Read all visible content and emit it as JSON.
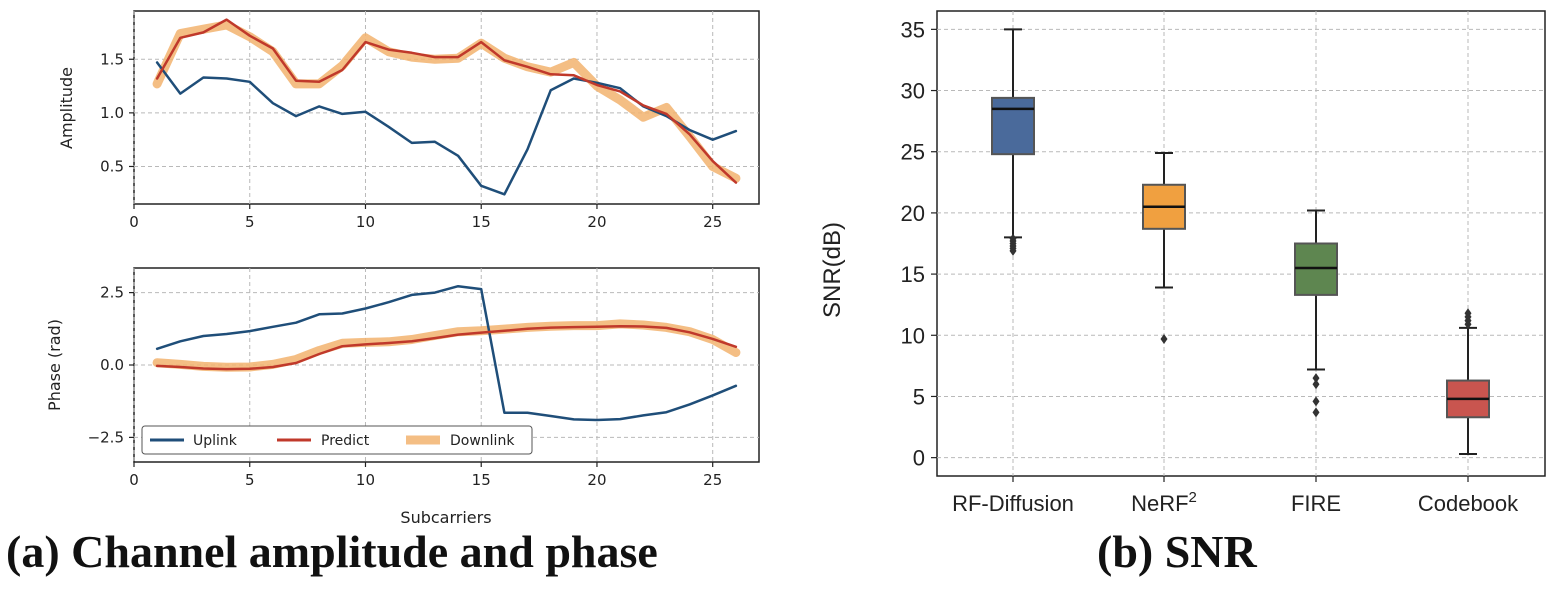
{
  "captions": {
    "a": "(a) Channel amplitude and phase",
    "b": "(b) SNR"
  },
  "colors": {
    "uplink": "#1f4e79",
    "predict": "#c0392b",
    "downlink": "#f2b36f",
    "rf_diffusion": "#4a6a9b",
    "nerf2": "#f0a040",
    "fire": "#5e8650",
    "codebook": "#c9554f"
  },
  "chart_data": [
    {
      "type": "line",
      "panel": "a-top",
      "xlabel": "",
      "ylabel": "Amplitude",
      "xlim": [
        0,
        27
      ],
      "ylim": [
        0.15,
        1.95
      ],
      "xticks": [
        "0",
        "5",
        "10",
        "15",
        "20",
        "25"
      ],
      "yticks": [
        "0.5",
        "1.0",
        "1.5"
      ],
      "grid": true,
      "x": [
        1,
        2,
        3,
        4,
        5,
        6,
        7,
        8,
        9,
        10,
        11,
        12,
        13,
        14,
        15,
        16,
        17,
        18,
        19,
        20,
        21,
        22,
        23,
        24,
        25,
        26
      ],
      "series": [
        {
          "name": "Uplink",
          "values": [
            1.47,
            1.18,
            1.33,
            1.32,
            1.29,
            1.09,
            0.97,
            1.06,
            0.99,
            1.01,
            0.87,
            0.72,
            0.73,
            0.6,
            0.32,
            0.24,
            0.66,
            1.21,
            1.32,
            1.28,
            1.23,
            1.06,
            0.97,
            0.84,
            0.75,
            0.83
          ]
        },
        {
          "name": "Predict",
          "values": [
            1.32,
            1.7,
            1.75,
            1.87,
            1.72,
            1.6,
            1.3,
            1.29,
            1.4,
            1.66,
            1.59,
            1.56,
            1.52,
            1.52,
            1.66,
            1.49,
            1.43,
            1.36,
            1.35,
            1.26,
            1.2,
            1.07,
            0.99,
            0.8,
            0.55,
            0.35
          ]
        },
        {
          "name": "Downlink",
          "values": [
            1.27,
            1.74,
            1.78,
            1.82,
            1.71,
            1.57,
            1.27,
            1.27,
            1.44,
            1.7,
            1.57,
            1.52,
            1.5,
            1.51,
            1.65,
            1.51,
            1.43,
            1.38,
            1.47,
            1.25,
            1.12,
            0.96,
            1.05,
            0.78,
            0.5,
            0.39
          ]
        }
      ]
    },
    {
      "type": "line",
      "panel": "a-bottom",
      "xlabel": "Subcarriers",
      "ylabel": "Phase (rad)",
      "xlim": [
        0,
        27
      ],
      "ylim": [
        -3.35,
        3.35
      ],
      "xticks": [
        "0",
        "5",
        "10",
        "15",
        "20",
        "25"
      ],
      "yticks": [
        "2.5",
        "0.0",
        "−2.5"
      ],
      "grid": true,
      "legend": "lower-left",
      "x": [
        1,
        2,
        3,
        4,
        5,
        6,
        7,
        8,
        9,
        10,
        11,
        12,
        13,
        14,
        15,
        16,
        17,
        18,
        19,
        20,
        21,
        22,
        23,
        24,
        25,
        26
      ],
      "series": [
        {
          "name": "Uplink",
          "values": [
            0.56,
            0.82,
            1.0,
            1.07,
            1.17,
            1.32,
            1.46,
            1.75,
            1.78,
            1.95,
            2.17,
            2.42,
            2.5,
            2.72,
            2.62,
            -1.65,
            -1.65,
            -1.76,
            -1.88,
            -1.9,
            -1.87,
            -1.74,
            -1.63,
            -1.36,
            -1.05,
            -0.72
          ]
        },
        {
          "name": "Predict",
          "values": [
            -0.03,
            -0.07,
            -0.12,
            -0.14,
            -0.13,
            -0.07,
            0.07,
            0.38,
            0.65,
            0.71,
            0.76,
            0.82,
            0.93,
            1.05,
            1.12,
            1.18,
            1.25,
            1.29,
            1.31,
            1.32,
            1.34,
            1.33,
            1.28,
            1.13,
            0.9,
            0.63
          ]
        },
        {
          "name": "Downlink",
          "values": [
            0.08,
            0.02,
            -0.05,
            -0.08,
            -0.07,
            0.02,
            0.19,
            0.5,
            0.75,
            0.78,
            0.8,
            0.88,
            1.02,
            1.15,
            1.18,
            1.24,
            1.3,
            1.34,
            1.36,
            1.36,
            1.42,
            1.38,
            1.3,
            1.15,
            0.88,
            0.43
          ]
        }
      ]
    },
    {
      "type": "box",
      "panel": "b",
      "xlabel": "",
      "ylabel": "SNR(dB)",
      "ylim": [
        -1.5,
        36.5
      ],
      "yticks": [
        "0",
        "5",
        "10",
        "15",
        "20",
        "25",
        "30",
        "35"
      ],
      "grid": true,
      "categories": [
        "RF-Diffusion",
        "NeRF",
        "FIRE",
        "Codebook"
      ],
      "category_superscripts": [
        "",
        "2",
        "",
        ""
      ],
      "boxes": [
        {
          "whisker_low": 18.0,
          "q1": 24.8,
          "median": 28.5,
          "q3": 29.4,
          "whisker_high": 35.0,
          "outliers": [
            17.9,
            17.7,
            17.5,
            17.3,
            17.1,
            16.9
          ]
        },
        {
          "whisker_low": 13.9,
          "q1": 18.7,
          "median": 20.5,
          "q3": 22.3,
          "whisker_high": 24.9,
          "outliers": [
            9.7
          ]
        },
        {
          "whisker_low": 7.2,
          "q1": 13.3,
          "median": 15.5,
          "q3": 17.5,
          "whisker_high": 20.2,
          "outliers": [
            6.5,
            6.0,
            4.6,
            3.7
          ]
        },
        {
          "whisker_low": 0.3,
          "q1": 3.3,
          "median": 4.8,
          "q3": 6.3,
          "whisker_high": 10.6,
          "outliers": [
            10.9,
            11.2,
            11.5,
            11.8
          ]
        }
      ]
    }
  ]
}
